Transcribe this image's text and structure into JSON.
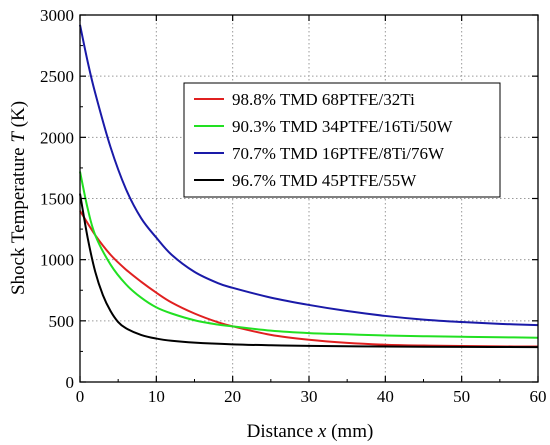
{
  "chart_data": {
    "type": "line",
    "xlabel": "Distance x (mm)",
    "xlabel_parts": {
      "prefix": "Distance ",
      "var": "x",
      "suffix": " (mm)"
    },
    "ylabel": "Shock Temperature T (K)",
    "ylabel_parts": {
      "prefix": "Shock Temperature ",
      "var": "T",
      "suffix": " (K)"
    },
    "xlim": [
      0,
      60
    ],
    "ylim": [
      0,
      3000
    ],
    "xticks": [
      0,
      10,
      20,
      30,
      40,
      50,
      60
    ],
    "yticks": [
      0,
      500,
      1000,
      1500,
      2000,
      2500,
      3000
    ],
    "grid": true,
    "grid_style": "dotted",
    "legend_position": "upper-right",
    "series": [
      {
        "name": "98.8% TMD 68PTFE/32Ti",
        "color": "#e02020",
        "x": [
          0,
          2,
          4,
          6,
          8,
          10,
          12,
          15,
          18,
          20,
          25,
          30,
          35,
          40,
          45,
          50,
          55,
          60
        ],
        "y": [
          1400,
          1200,
          1040,
          920,
          820,
          730,
          650,
          560,
          490,
          455,
          385,
          345,
          320,
          305,
          298,
          294,
          291,
          290
        ]
      },
      {
        "name": "90.3% TMD 34PTFE/16Ti/50W",
        "color": "#22e022",
        "x": [
          0,
          1,
          2,
          4,
          6,
          8,
          10,
          12,
          15,
          18,
          20,
          25,
          30,
          35,
          40,
          45,
          50,
          55,
          60
        ],
        "y": [
          1720,
          1420,
          1200,
          960,
          800,
          690,
          610,
          560,
          505,
          470,
          455,
          420,
          400,
          390,
          380,
          374,
          370,
          366,
          362
        ]
      },
      {
        "name": "70.7% TMD 16PTFE/8Ti/76W",
        "color": "#1a1aa8",
        "x": [
          0,
          1,
          2,
          4,
          6,
          8,
          10,
          12,
          15,
          18,
          20,
          25,
          30,
          35,
          40,
          45,
          50,
          55,
          60
        ],
        "y": [
          2920,
          2620,
          2360,
          1920,
          1580,
          1340,
          1180,
          1040,
          900,
          810,
          770,
          690,
          630,
          580,
          540,
          510,
          490,
          475,
          465
        ]
      },
      {
        "name": "96.7% TMD 45PTFE/55W",
        "color": "#000000",
        "x": [
          0,
          1,
          2,
          3,
          4,
          5,
          6,
          8,
          10,
          12,
          15,
          20,
          25,
          30,
          40,
          50,
          60
        ],
        "y": [
          1540,
          1180,
          900,
          710,
          580,
          490,
          440,
          385,
          355,
          337,
          322,
          308,
          300,
          295,
          290,
          287,
          285
        ]
      }
    ]
  }
}
